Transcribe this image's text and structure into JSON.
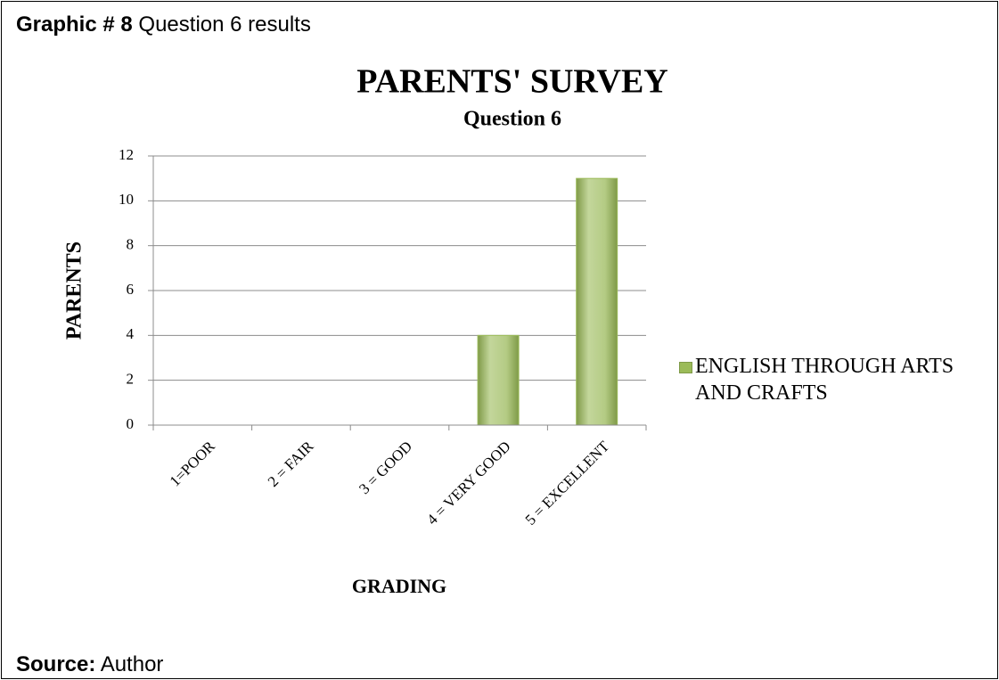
{
  "caption": {
    "label": "Graphic # 8",
    "text": "Question 6 results"
  },
  "source": {
    "label": "Source:",
    "text": "Author"
  },
  "chart_data": {
    "type": "bar",
    "title": "PARENTS' SURVEY",
    "subtitle": "Question 6",
    "xlabel": "GRADING",
    "ylabel": "PARENTS",
    "categories": [
      "1=POOR",
      "2 = FAIR",
      "3 = GOOD",
      "4 = VERY GOOD",
      "5 = EXCELLENT"
    ],
    "series": [
      {
        "name": "ENGLISH THROUGH ARTS AND CRAFTS",
        "color": "#9bbb59",
        "values": [
          0,
          0,
          0,
          4,
          11
        ]
      }
    ],
    "ylim": [
      0,
      12
    ],
    "yticks": [
      0,
      2,
      4,
      6,
      8,
      10,
      12
    ],
    "grid": true,
    "legend": "right"
  }
}
